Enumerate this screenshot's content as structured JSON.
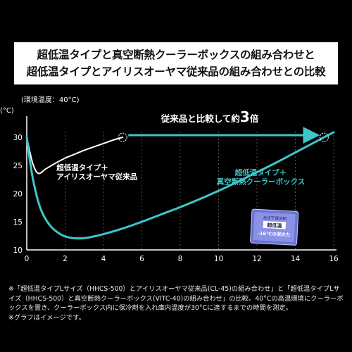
{
  "title_lines": [
    "超低温タイプと真空断熱クーラーボックスの組み合わせと",
    "超低温タイプとアイリスオーヤマ従来品の組み合わせとの比較"
  ],
  "ambient_label": "(環境温度：40°C)",
  "y_unit": "(°C)",
  "callout": {
    "prefix": "従来品と比較して約",
    "value": "3",
    "suffix": "倍"
  },
  "product_box_text": [
    "氷点下保冷剤",
    "超低温",
    "-16°Cの保冷力"
  ],
  "footnotes": [
    "※「超低温タイプLサイズ（HHCS-500）とアイリスオーヤマ従来品(CL-45)の組み合わせ」と「超低温タイプLサイズ（HHCS-500）と真空断熱クーラーボックス(VITC-40)の組み合わせ」の比較。40°Cの高温環境にクーラーボックスを置き、クーラーボックス内に保冷剤を入れ庫内温度が30°Cに達するまでの時間を測定。",
    "※グラフはイメージです。"
  ],
  "colors": {
    "conventional": "#ffffff",
    "vacuum": "#3ec6c8",
    "arrow": "#3ec6c8",
    "axis": "#ffffff"
  },
  "chart_data": {
    "type": "line",
    "title": "",
    "xlabel": "",
    "ylabel": "(°C)",
    "xlim": [
      0,
      16
    ],
    "ylim": [
      10,
      30
    ],
    "x_ticks": [
      0,
      2,
      4,
      6,
      8,
      10,
      12,
      14,
      16
    ],
    "y_ticks": [
      10,
      15,
      20,
      25,
      30
    ],
    "grid": "vertical dashed",
    "series": [
      {
        "name": "超低温タイプ＋アイリスオーヤマ従来品",
        "label_lines": [
          "超低温タイプ＋",
          "アイリスオーヤマ従来品"
        ],
        "color": "#ffffff",
        "x": [
          0,
          0.3,
          0.6,
          1.0,
          1.5,
          2.0,
          2.5,
          3.0,
          3.5,
          4.0,
          4.5,
          5.0
        ],
        "y": [
          30,
          25.5,
          23.6,
          24.4,
          25.4,
          26.3,
          27.0,
          27.7,
          28.3,
          28.9,
          29.5,
          30
        ]
      },
      {
        "name": "超低温タイプ＋真空断熱クーラーボックス",
        "label_lines": [
          "超低温タイプ＋",
          "真空断熱クーラーボックス"
        ],
        "color": "#3ec6c8",
        "x": [
          0,
          0.3,
          0.7,
          1.2,
          1.8,
          2.4,
          3.0,
          3.5,
          4.0,
          5.0,
          6.0,
          7.0,
          8.0,
          9.0,
          10.0,
          11.0,
          12.0,
          13.0,
          14.0,
          15.0,
          15.5,
          16.0
        ],
        "y": [
          30,
          23.0,
          17.5,
          14.4,
          12.7,
          12.1,
          12.1,
          12.4,
          12.8,
          13.8,
          15.0,
          16.3,
          17.6,
          19.0,
          20.5,
          22.1,
          23.8,
          25.5,
          27.3,
          29.1,
          30,
          30.9
        ]
      }
    ],
    "markers": [
      {
        "x": 5.0,
        "y": 30,
        "series": 0
      },
      {
        "x": 15.5,
        "y": 30,
        "series": 1
      }
    ],
    "arrow": {
      "from_x": 5.0,
      "to_x": 15.5,
      "y": 30
    }
  }
}
